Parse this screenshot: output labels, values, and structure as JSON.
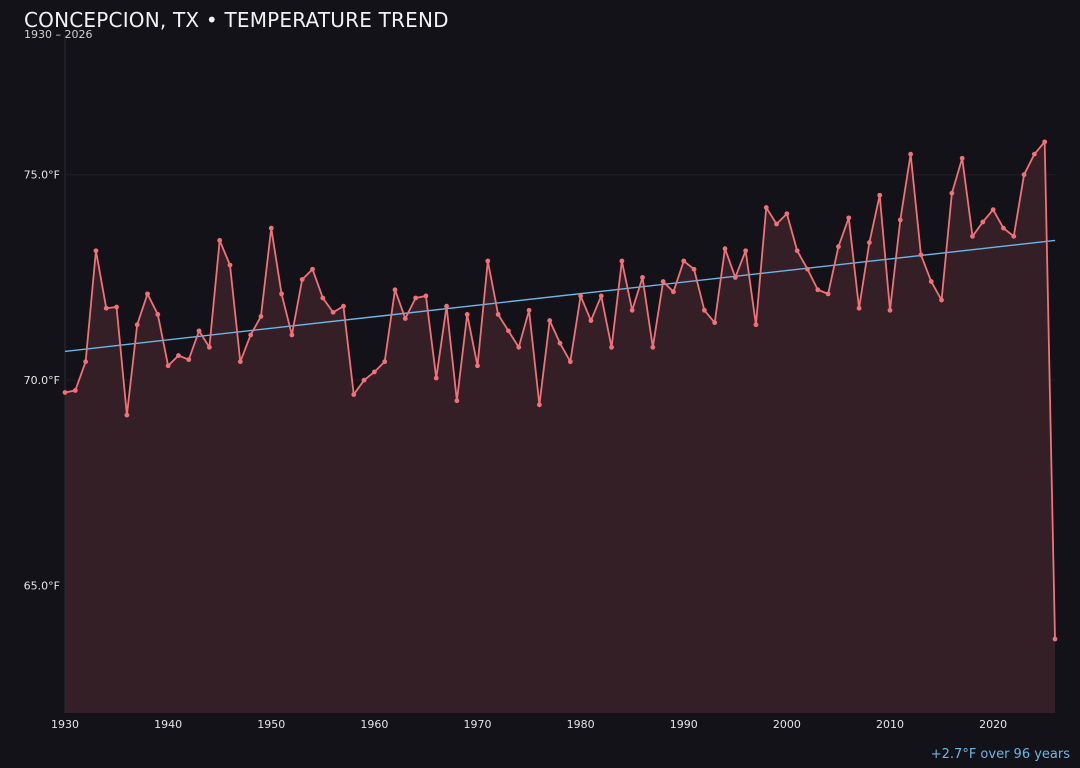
{
  "chart_data": {
    "type": "line",
    "title": "CONCEPCION, TX • TEMPERATURE TREND",
    "subtitle": "1930 – 2026",
    "annotation": "+2.7°F over 96 years",
    "xlabel": "",
    "ylabel": "",
    "xlim": [
      1930,
      2026
    ],
    "ylim": [
      61.9,
      78.4
    ],
    "x_ticks": [
      1930,
      1940,
      1950,
      1960,
      1970,
      1980,
      1990,
      2000,
      2010,
      2020
    ],
    "y_ticks": [
      65.0,
      70.0,
      75.0
    ],
    "y_tick_labels": [
      "65.0°F",
      "70.0°F",
      "75.0°F"
    ],
    "grid": true,
    "colors": {
      "background": "#131218",
      "line": "#f07178",
      "fill": "#351f27",
      "trend": "#6cb6e8",
      "grid": "#202027"
    },
    "series": [
      {
        "x": [
          1930,
          1931,
          1932,
          1933,
          1934,
          1935,
          1936,
          1937,
          1938,
          1939,
          1940,
          1941,
          1942,
          1943,
          1944,
          1945,
          1946,
          1947,
          1948,
          1949,
          1950,
          1951,
          1952,
          1953,
          1954,
          1955,
          1956,
          1957,
          1958,
          1959,
          1960,
          1961,
          1962,
          1963,
          1964,
          1965,
          1966,
          1967,
          1968,
          1969,
          1970,
          1971,
          1972,
          1973,
          1974,
          1975,
          1976,
          1977,
          1978,
          1979,
          1980,
          1981,
          1982,
          1983,
          1984,
          1985,
          1986,
          1987,
          1988,
          1989,
          1990,
          1991,
          1992,
          1993,
          1994,
          1995,
          1996,
          1997,
          1998,
          1999,
          2000,
          2001,
          2002,
          2003,
          2004,
          2005,
          2006,
          2007,
          2008,
          2009,
          2010,
          2011,
          2012,
          2013,
          2014,
          2015,
          2016,
          2017,
          2018,
          2019,
          2020,
          2021,
          2022,
          2023,
          2024,
          2025,
          2026
        ],
        "values": [
          69.7,
          69.75,
          70.45,
          73.15,
          71.75,
          71.78,
          69.15,
          71.35,
          72.1,
          71.6,
          70.35,
          70.6,
          70.5,
          71.2,
          70.8,
          73.4,
          72.8,
          70.45,
          71.1,
          71.55,
          73.7,
          72.1,
          71.1,
          72.45,
          72.7,
          72.0,
          71.65,
          71.8,
          69.65,
          70.0,
          70.2,
          70.45,
          72.2,
          71.5,
          72.0,
          72.05,
          70.05,
          71.8,
          69.5,
          71.6,
          70.35,
          72.9,
          71.6,
          71.2,
          70.8,
          71.7,
          69.4,
          71.45,
          70.9,
          70.45,
          72.05,
          71.45,
          72.05,
          70.8,
          72.9,
          71.7,
          72.5,
          70.8,
          72.4,
          72.15,
          72.9,
          72.7,
          71.7,
          71.4,
          73.2,
          72.5,
          73.15,
          71.35,
          74.2,
          73.8,
          74.05,
          73.15,
          72.7,
          72.2,
          72.1,
          73.25,
          73.95,
          71.75,
          73.35,
          74.5,
          71.7,
          73.9,
          75.5,
          73.05,
          72.4,
          71.95,
          74.55,
          75.4,
          73.5,
          73.85,
          74.15,
          73.7,
          73.5,
          75.0,
          75.5,
          75.8,
          63.7
        ]
      }
    ],
    "trend": {
      "x": [
        1930,
        2026
      ],
      "y": [
        70.7,
        73.4
      ]
    }
  }
}
